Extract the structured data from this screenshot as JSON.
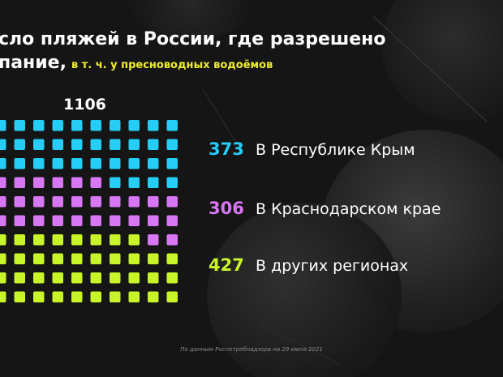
{
  "title": {
    "line1": "сло пляжей в России, где разрешено",
    "line2": "пание,",
    "subtitle": "в т. ч. у пресноводных водоёмов"
  },
  "total": "1106",
  "colors": {
    "crimea": "#25cdf7",
    "krasnodar": "#d777f3",
    "other": "#c8f52a",
    "background": "#151515"
  },
  "chart_data": {
    "type": "waffle",
    "total": 1106,
    "series": [
      {
        "name": "В Республике Крым",
        "value": 373,
        "color": "#25cdf7"
      },
      {
        "name": "В Краснодарском крае",
        "value": 306,
        "color": "#d777f3"
      },
      {
        "name": "В других регионах",
        "value": 427,
        "color": "#c8f52a"
      }
    ]
  },
  "legend": [
    {
      "value": "373",
      "label": "В Республике Крым"
    },
    {
      "value": "306",
      "label": "В Краснодарском крае"
    },
    {
      "value": "427",
      "label": "В других регионах"
    }
  ],
  "footnote": "По данным Роспотребнадзора на 29 июня 2021"
}
